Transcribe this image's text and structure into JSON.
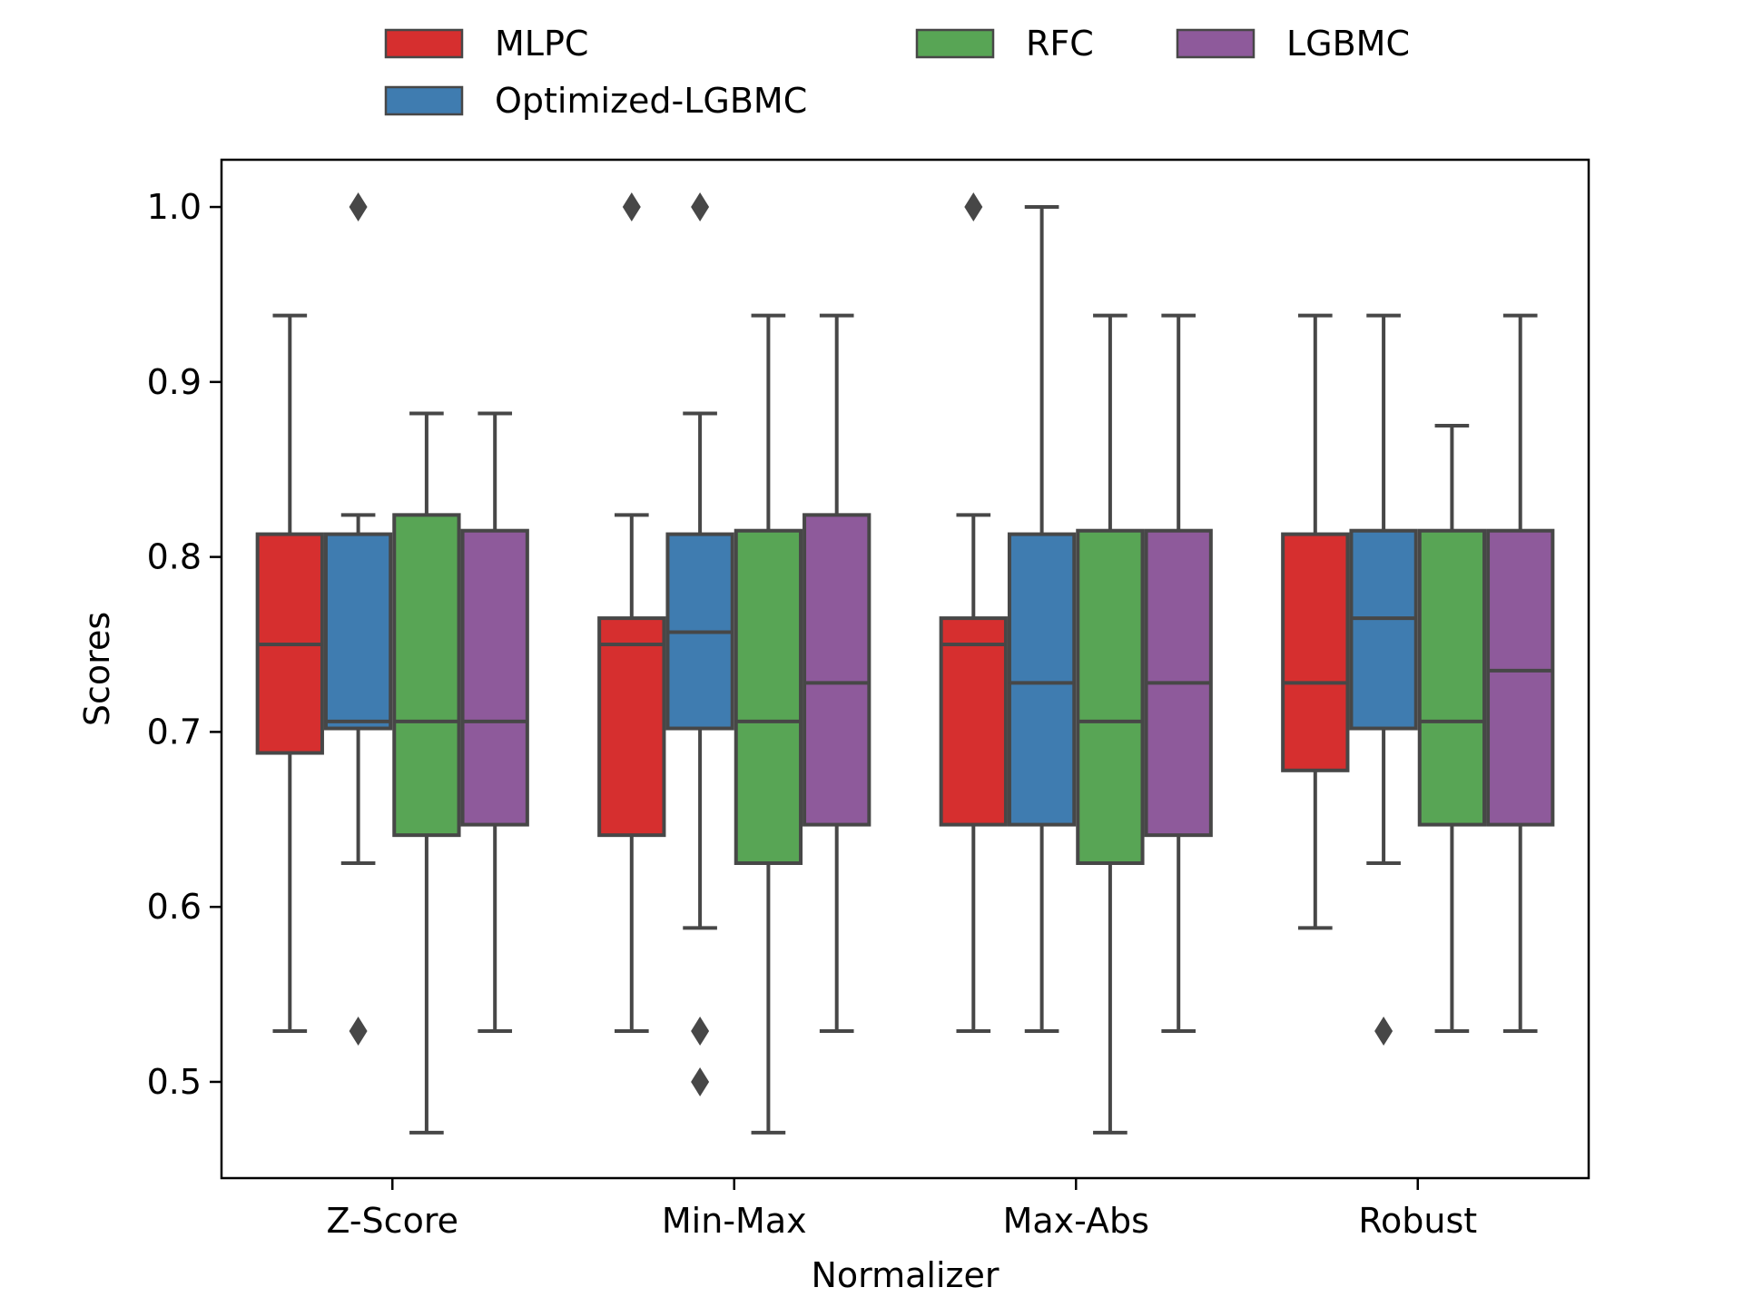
{
  "chart_data": {
    "type": "box",
    "xlabel": "Normalizer",
    "ylabel": "Scores",
    "categories": [
      "Z-Score",
      "Min-Max",
      "Max-Abs",
      "Robust"
    ],
    "ylim": [
      0.445,
      1.027
    ],
    "yticks": [
      0.5,
      0.6,
      0.7,
      0.8,
      0.9,
      1.0
    ],
    "ytick_labels": [
      "0.5",
      "0.6",
      "0.7",
      "0.8",
      "0.9",
      "1.0"
    ],
    "grid": false,
    "legend": {
      "placement": "top-center, outside plot",
      "columns": 3
    },
    "series": [
      {
        "name": "MLPC",
        "color": "#d62f2f",
        "boxes": [
          {
            "whisker_low": 0.529,
            "q1": 0.688,
            "median": 0.75,
            "q3": 0.813,
            "whisker_high": 0.938,
            "outliers": []
          },
          {
            "whisker_low": 0.529,
            "q1": 0.641,
            "median": 0.75,
            "q3": 0.765,
            "whisker_high": 0.824,
            "outliers": [
              1.0
            ]
          },
          {
            "whisker_low": 0.529,
            "q1": 0.647,
            "median": 0.75,
            "q3": 0.765,
            "whisker_high": 0.824,
            "outliers": [
              1.0
            ]
          },
          {
            "whisker_low": 0.588,
            "q1": 0.678,
            "median": 0.728,
            "q3": 0.813,
            "whisker_high": 0.938,
            "outliers": []
          }
        ]
      },
      {
        "name": "Optimized-LGBMC",
        "color": "#3f7cb0",
        "boxes": [
          {
            "whisker_low": 0.625,
            "q1": 0.702,
            "median": 0.706,
            "q3": 0.813,
            "whisker_high": 0.824,
            "outliers": [
              1.0,
              0.529
            ]
          },
          {
            "whisker_low": 0.588,
            "q1": 0.702,
            "median": 0.757,
            "q3": 0.813,
            "whisker_high": 0.882,
            "outliers": [
              1.0,
              0.529,
              0.5
            ]
          },
          {
            "whisker_low": 0.529,
            "q1": 0.647,
            "median": 0.728,
            "q3": 0.813,
            "whisker_high": 1.0,
            "outliers": []
          },
          {
            "whisker_low": 0.625,
            "q1": 0.702,
            "median": 0.765,
            "q3": 0.815,
            "whisker_high": 0.938,
            "outliers": [
              0.529
            ]
          }
        ]
      },
      {
        "name": "RFC",
        "color": "#58a555",
        "boxes": [
          {
            "whisker_low": 0.471,
            "q1": 0.641,
            "median": 0.706,
            "q3": 0.824,
            "whisker_high": 0.882,
            "outliers": []
          },
          {
            "whisker_low": 0.471,
            "q1": 0.625,
            "median": 0.706,
            "q3": 0.815,
            "whisker_high": 0.938,
            "outliers": []
          },
          {
            "whisker_low": 0.471,
            "q1": 0.625,
            "median": 0.706,
            "q3": 0.815,
            "whisker_high": 0.938,
            "outliers": []
          },
          {
            "whisker_low": 0.529,
            "q1": 0.647,
            "median": 0.706,
            "q3": 0.815,
            "whisker_high": 0.875,
            "outliers": []
          }
        ]
      },
      {
        "name": "LGBMC",
        "color": "#8e5a9b",
        "boxes": [
          {
            "whisker_low": 0.529,
            "q1": 0.647,
            "median": 0.706,
            "q3": 0.815,
            "whisker_high": 0.882,
            "outliers": []
          },
          {
            "whisker_low": 0.529,
            "q1": 0.647,
            "median": 0.728,
            "q3": 0.824,
            "whisker_high": 0.938,
            "outliers": []
          },
          {
            "whisker_low": 0.529,
            "q1": 0.641,
            "median": 0.728,
            "q3": 0.815,
            "whisker_high": 0.938,
            "outliers": []
          },
          {
            "whisker_low": 0.529,
            "q1": 0.647,
            "median": 0.735,
            "q3": 0.815,
            "whisker_high": 0.938,
            "outliers": []
          }
        ]
      }
    ]
  }
}
